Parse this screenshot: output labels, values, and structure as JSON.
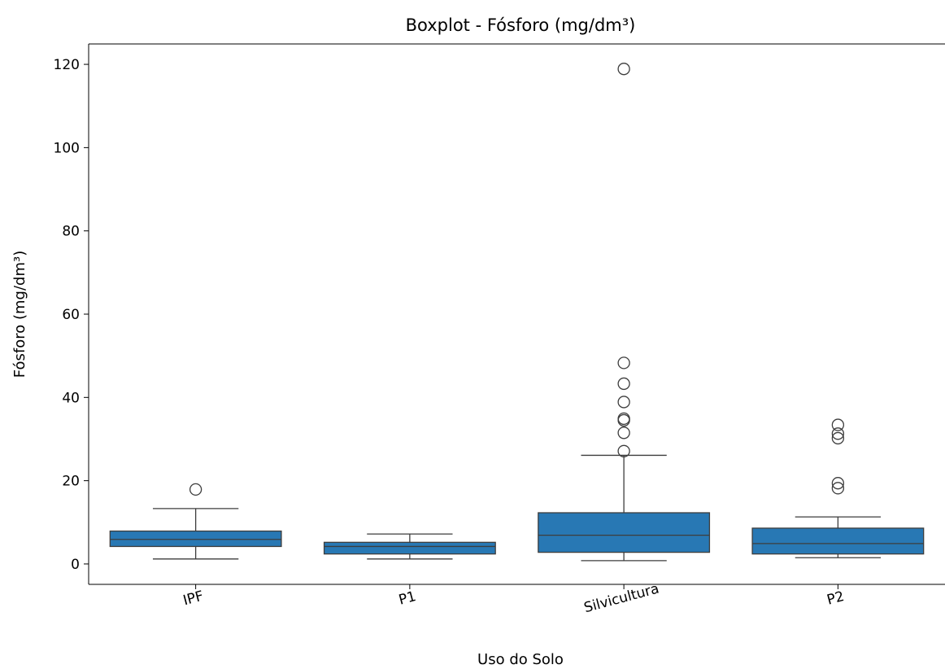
{
  "chart_data": {
    "type": "box",
    "title": "Boxplot - Fósforo (mg/dm³)",
    "xlabel": "Uso do Solo",
    "ylabel": "Fósforo (mg/dm³)",
    "ylim": [
      -4.9,
      124.9
    ],
    "yticks": [
      0,
      20,
      40,
      60,
      80,
      100,
      120
    ],
    "grid": false,
    "box_color": "#2878b4",
    "categories": [
      "IPF",
      "P1",
      "Silvicultura",
      "P2"
    ],
    "boxes": [
      {
        "category": "IPF",
        "whisker_low": 1.2,
        "q1": 4.2,
        "median": 5.9,
        "q3": 7.9,
        "whisker_high": 13.3,
        "outliers": [
          17.9
        ]
      },
      {
        "category": "P1",
        "whisker_low": 1.2,
        "q1": 2.4,
        "median": 4.2,
        "q3": 5.2,
        "whisker_high": 7.2,
        "outliers": []
      },
      {
        "category": "Silvicultura",
        "whisker_low": 0.8,
        "q1": 2.8,
        "median": 6.9,
        "q3": 12.3,
        "whisker_high": 26.1,
        "outliers": [
          27.1,
          31.5,
          34.5,
          34.9,
          38.9,
          43.3,
          48.3,
          118.9
        ]
      },
      {
        "category": "P2",
        "whisker_low": 1.5,
        "q1": 2.4,
        "median": 4.9,
        "q3": 8.6,
        "whisker_high": 11.3,
        "outliers": [
          18.2,
          19.4,
          30.2,
          31.3,
          33.4
        ]
      }
    ]
  }
}
